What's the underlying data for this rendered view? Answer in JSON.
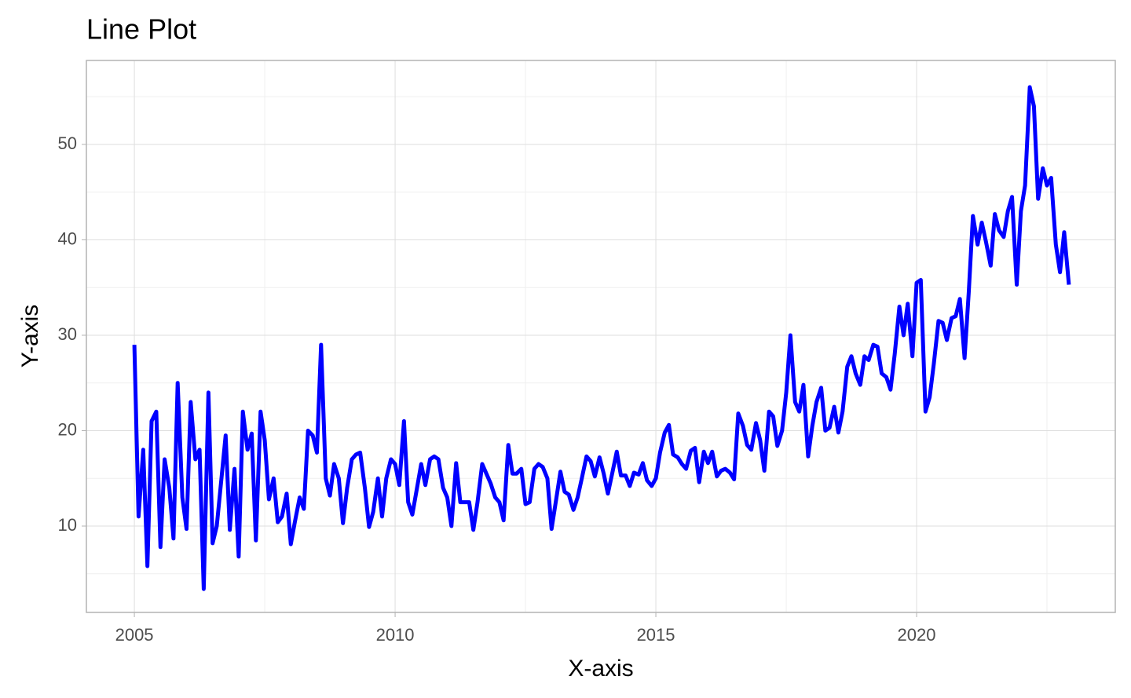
{
  "chart_data": {
    "type": "line",
    "title": "Line Plot",
    "x_label": "X-axis",
    "y_label": "Y-axis",
    "x": [
      2005.0,
      2005.08,
      2005.17,
      2005.25,
      2005.33,
      2005.42,
      2005.5,
      2005.58,
      2005.67,
      2005.75,
      2005.83,
      2005.92,
      2006.0,
      2006.08,
      2006.17,
      2006.25,
      2006.33,
      2006.42,
      2006.5,
      2006.58,
      2006.67,
      2006.75,
      2006.83,
      2006.92,
      2007.0,
      2007.08,
      2007.17,
      2007.25,
      2007.33,
      2007.42,
      2007.5,
      2007.58,
      2007.67,
      2007.75,
      2007.83,
      2007.92,
      2008.0,
      2008.08,
      2008.17,
      2008.25,
      2008.33,
      2008.42,
      2008.5,
      2008.58,
      2008.67,
      2008.75,
      2008.83,
      2008.92,
      2009.0,
      2009.08,
      2009.17,
      2009.25,
      2009.33,
      2009.42,
      2009.5,
      2009.58,
      2009.67,
      2009.75,
      2009.83,
      2009.92,
      2010.0,
      2010.08,
      2010.17,
      2010.25,
      2010.33,
      2010.42,
      2010.5,
      2010.58,
      2010.67,
      2010.75,
      2010.83,
      2010.92,
      2011.0,
      2011.08,
      2011.17,
      2011.25,
      2011.33,
      2011.42,
      2011.5,
      2011.58,
      2011.67,
      2011.75,
      2011.83,
      2011.92,
      2012.0,
      2012.08,
      2012.17,
      2012.25,
      2012.33,
      2012.42,
      2012.5,
      2012.58,
      2012.67,
      2012.75,
      2012.83,
      2012.92,
      2013.0,
      2013.08,
      2013.17,
      2013.25,
      2013.33,
      2013.42,
      2013.5,
      2013.58,
      2013.67,
      2013.75,
      2013.83,
      2013.92,
      2014.0,
      2014.08,
      2014.17,
      2014.25,
      2014.33,
      2014.42,
      2014.5,
      2014.58,
      2014.67,
      2014.75,
      2014.83,
      2014.92,
      2015.0,
      2015.08,
      2015.17,
      2015.25,
      2015.33,
      2015.42,
      2015.5,
      2015.58,
      2015.67,
      2015.75,
      2015.83,
      2015.92,
      2016.0,
      2016.08,
      2016.17,
      2016.25,
      2016.33,
      2016.42,
      2016.5,
      2016.58,
      2016.67,
      2016.75,
      2016.83,
      2016.92,
      2017.0,
      2017.08,
      2017.17,
      2017.25,
      2017.33,
      2017.42,
      2017.5,
      2017.58,
      2017.67,
      2017.75,
      2017.83,
      2017.92,
      2018.0,
      2018.08,
      2018.17,
      2018.25,
      2018.33,
      2018.42,
      2018.5,
      2018.58,
      2018.67,
      2018.75,
      2018.83,
      2018.92,
      2019.0,
      2019.08,
      2019.17,
      2019.25,
      2019.33,
      2019.42,
      2019.5,
      2019.58,
      2019.67,
      2019.75,
      2019.83,
      2019.92,
      2020.0,
      2020.08,
      2020.17,
      2020.25,
      2020.33,
      2020.42,
      2020.5,
      2020.58,
      2020.67,
      2020.75,
      2020.83,
      2020.92,
      2021.0,
      2021.08,
      2021.17,
      2021.25,
      2021.33,
      2021.42,
      2021.5,
      2021.58,
      2021.67,
      2021.75,
      2021.83,
      2021.92,
      2022.0,
      2022.08,
      2022.17,
      2022.25,
      2022.33,
      2022.42,
      2022.5,
      2022.58,
      2022.67,
      2022.75,
      2022.83,
      2022.92
    ],
    "series": [
      {
        "color": "#0000ff",
        "values": [
          29,
          11,
          18,
          5.8,
          21,
          22,
          7.8,
          17,
          14,
          8.7,
          25,
          13,
          9.7,
          23,
          17,
          18,
          3.4,
          24,
          8.2,
          10,
          15,
          19.5,
          9.6,
          16,
          6.8,
          22,
          18,
          19.7,
          8.5,
          22,
          19,
          12.8,
          15,
          10.4,
          11,
          13.4,
          8.1,
          10.5,
          13,
          11.8,
          20,
          19.5,
          17.7,
          29,
          15,
          13.2,
          16.5,
          15,
          10.3,
          14,
          17,
          17.5,
          17.7,
          14,
          9.9,
          11.5,
          15,
          11,
          15,
          17,
          16.5,
          14.3,
          21,
          12.5,
          11.2,
          14,
          16.5,
          14.3,
          17,
          17.3,
          17,
          14,
          13,
          10,
          16.6,
          12.5,
          12.5,
          12.5,
          9.6,
          12.5,
          16.5,
          15.5,
          14.5,
          13,
          12.5,
          10.6,
          18.5,
          15.5,
          15.5,
          16,
          12.3,
          12.5,
          16,
          16.5,
          16.2,
          15,
          9.7,
          12.5,
          15.7,
          13.6,
          13.3,
          11.7,
          13,
          15,
          17.3,
          16.8,
          15.2,
          17.2,
          15.5,
          13.4,
          15.7,
          17.8,
          15.3,
          15.3,
          14.2,
          15.6,
          15.4,
          16.6,
          14.8,
          14.2,
          15,
          17.7,
          19.8,
          20.6,
          17.5,
          17.2,
          16.5,
          16,
          17.9,
          18.2,
          14.6,
          17.8,
          16.6,
          17.8,
          15.2,
          15.8,
          16,
          15.6,
          14.9,
          21.8,
          20.5,
          18.5,
          18,
          20.8,
          19,
          15.8,
          22,
          21.5,
          18.4,
          20,
          24,
          30,
          23,
          22,
          24.8,
          17.3,
          20.5,
          23,
          24.5,
          20,
          20.3,
          22.5,
          19.8,
          22,
          26.7,
          27.8,
          26,
          24.8,
          27.8,
          27.4,
          29,
          28.8,
          26,
          25.6,
          24.3,
          28,
          33,
          30,
          33.3,
          27.8,
          35.5,
          35.8,
          22,
          23.5,
          27,
          31.5,
          31.3,
          29.5,
          31.8,
          32,
          33.8,
          27.6,
          34.5,
          42.5,
          39.5,
          41.8,
          39.8,
          37.3,
          42.7,
          41,
          40.3,
          43,
          44.5,
          35.3,
          43,
          45.7,
          56,
          54,
          44.3,
          47.5,
          45.7,
          46.5,
          39.5,
          36.6,
          40.8,
          35.3
        ]
      }
    ],
    "xlim": [
      2004.08,
      2023.81
    ],
    "ylim": [
      0.95,
      58.8
    ],
    "xticks": [
      2005,
      2010,
      2015,
      2020
    ],
    "yticks": [
      10,
      20,
      30,
      40,
      50
    ],
    "grid": true
  }
}
